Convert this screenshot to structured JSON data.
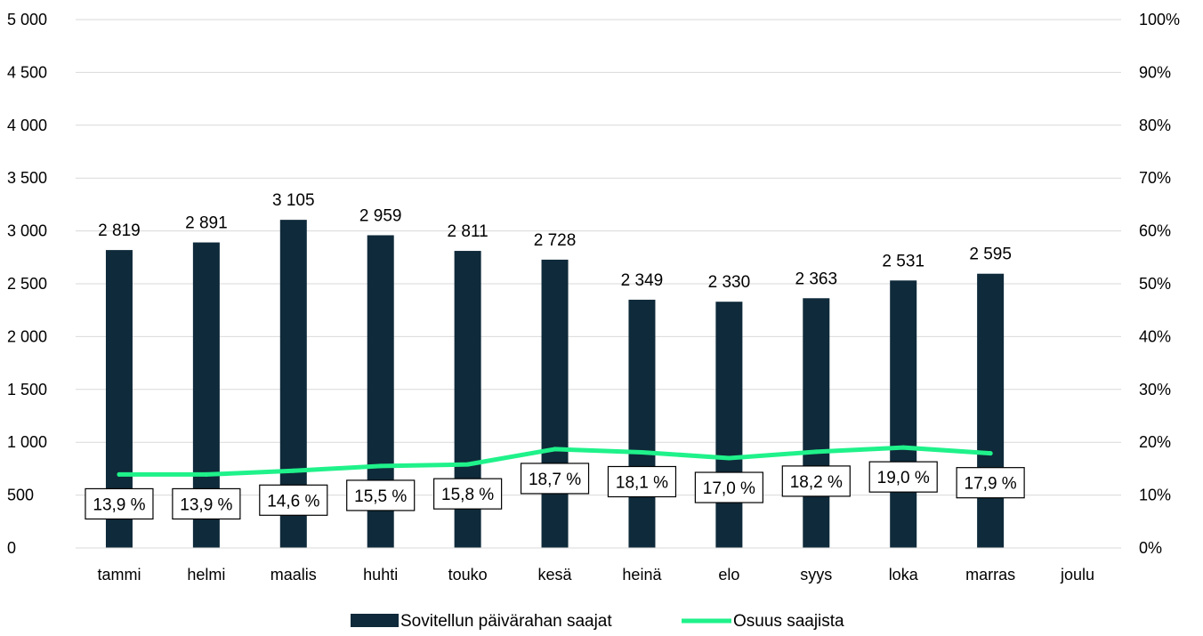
{
  "chart_data": {
    "type": "bar",
    "categories": [
      "tammi",
      "helmi",
      "maalis",
      "huhti",
      "touko",
      "kesä",
      "heinä",
      "elo",
      "syys",
      "loka",
      "marras",
      "joulu"
    ],
    "series": [
      {
        "name": "Sovitellun päivärahan saajat",
        "type": "bar",
        "axis": "left",
        "values": [
          2819,
          2891,
          3105,
          2959,
          2811,
          2728,
          2349,
          2330,
          2363,
          2531,
          2595,
          null
        ],
        "labels": [
          "2 819",
          "2 891",
          "3 105",
          "2 959",
          "2 811",
          "2 728",
          "2 349",
          "2 330",
          "2 363",
          "2 531",
          "2 595",
          ""
        ]
      },
      {
        "name": "Osuus saajista",
        "type": "line",
        "axis": "right",
        "values": [
          13.9,
          13.9,
          14.6,
          15.5,
          15.8,
          18.7,
          18.1,
          17.0,
          18.2,
          19.0,
          17.9,
          null
        ],
        "labels": [
          "13,9 %",
          "13,9 %",
          "14,6 %",
          "15,5 %",
          "15,8 %",
          "18,7 %",
          "18,1 %",
          "17,0 %",
          "18,2 %",
          "19,0 %",
          "17,9 %",
          ""
        ]
      }
    ],
    "y_left": {
      "min": 0,
      "max": 5000,
      "ticks": [
        "0",
        "500",
        "1 000",
        "1 500",
        "2 000",
        "2 500",
        "3 000",
        "3 500",
        "4 000",
        "4 500",
        "5 000"
      ]
    },
    "y_right": {
      "min": 0,
      "max": 100,
      "ticks": [
        "0%",
        "10%",
        "20%",
        "30%",
        "40%",
        "50%",
        "60%",
        "70%",
        "80%",
        "90%",
        "100%"
      ]
    },
    "grid": true,
    "legend_position": "bottom",
    "colors": {
      "bar": "#0F2A3A",
      "line": "#1FF28A",
      "grid": "#D9D9D9"
    }
  }
}
